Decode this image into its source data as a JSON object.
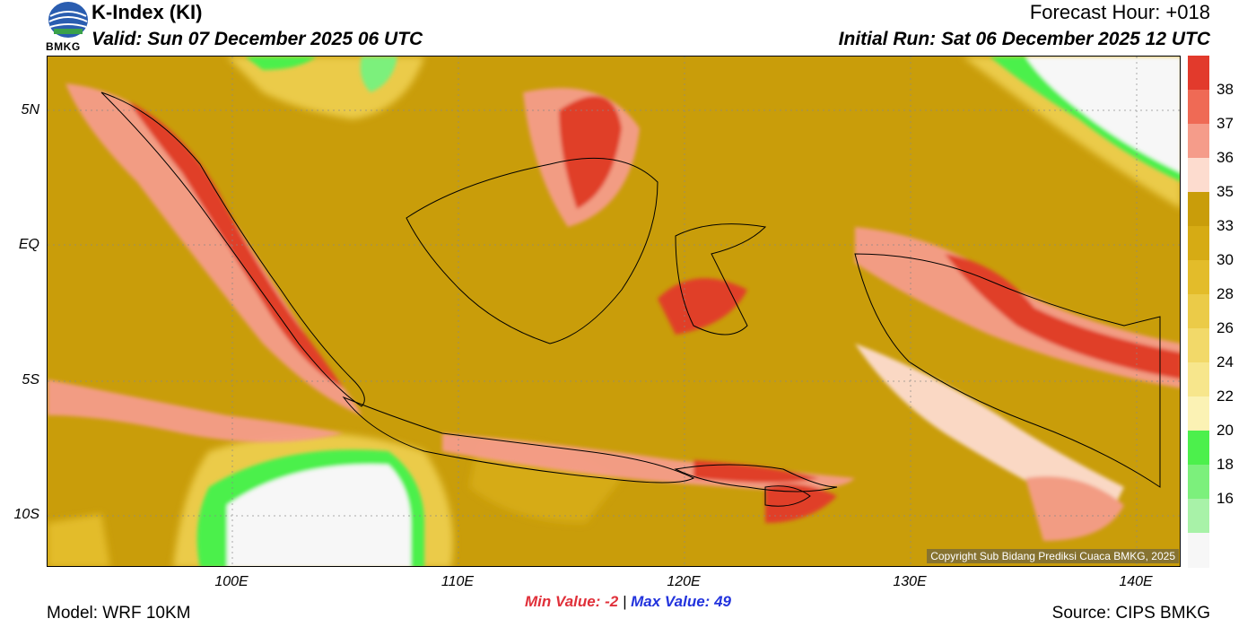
{
  "header": {
    "title": "K-Index (KI)",
    "valid": "Valid: Sun 07 December 2025 06 UTC",
    "forecast_hour": "Forecast Hour: +018",
    "initial_run": "Initial Run: Sat 06 December 2025 12 UTC"
  },
  "logo": {
    "text": "BMKG",
    "icon": "bmkg-logo-icon"
  },
  "map": {
    "lat_ticks": [
      "5N",
      "EQ",
      "5S",
      "10S"
    ],
    "lon_ticks": [
      "100E",
      "110E",
      "120E",
      "130E",
      "140E"
    ],
    "copyright": "Copyright Sub Bidang Prediksi Cuaca BMKG, 2025"
  },
  "stats": {
    "min_label": "Min Value:",
    "min_value": "-2",
    "separator": "|",
    "max_label": "Max Value:",
    "max_value": "49"
  },
  "colorbar": {
    "levels": [
      {
        "label": "38",
        "color": "#e23a2c"
      },
      {
        "label": "37",
        "color": "#ef6a55"
      },
      {
        "label": "36",
        "color": "#f59c8a"
      },
      {
        "label": "35",
        "color": "#fddccf"
      },
      {
        "label": "33",
        "color": "#c99d0a"
      },
      {
        "label": "30",
        "color": "#d6ab14"
      },
      {
        "label": "28",
        "color": "#e3bc2a"
      },
      {
        "label": "26",
        "color": "#ebcb48"
      },
      {
        "label": "24",
        "color": "#f2d969"
      },
      {
        "label": "22",
        "color": "#f7e68c"
      },
      {
        "label": "20",
        "color": "#fbf2b4"
      },
      {
        "label": "18",
        "color": "#4cf04c"
      },
      {
        "label": "16",
        "color": "#7cf07c"
      },
      {
        "label": "",
        "color": "#a8f2a8"
      },
      {
        "label": "",
        "color": "#f7f7f7"
      }
    ]
  },
  "footer": {
    "model": "Model: WRF 10KM",
    "source": "Source: CIPS BMKG"
  }
}
